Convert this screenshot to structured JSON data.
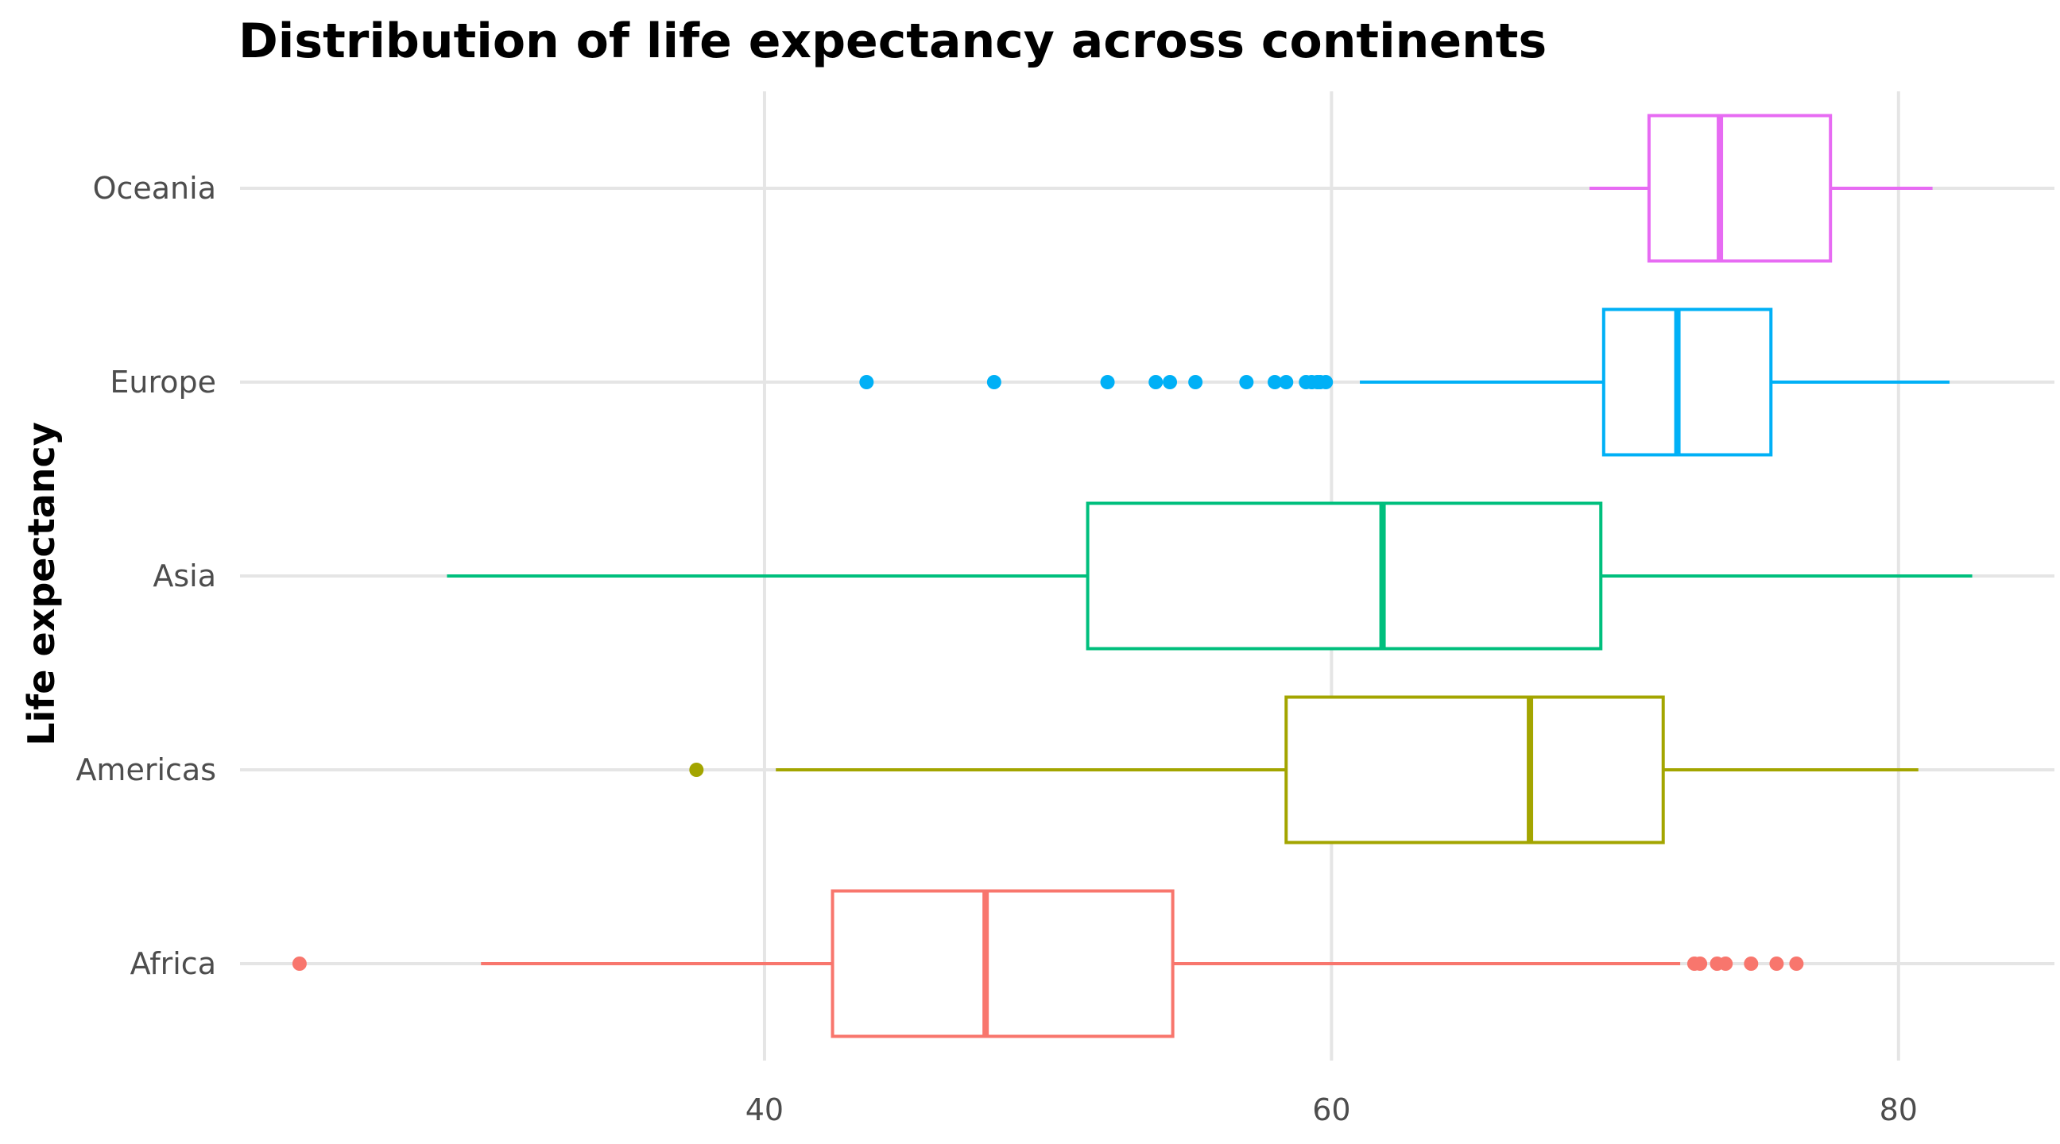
{
  "chart_data": {
    "type": "boxplot",
    "orientation": "horizontal",
    "title": "Distribution of life expectancy across continents",
    "xlabel": "",
    "ylabel": "Life expectancy",
    "xlim": [
      21.5,
      85.5
    ],
    "xticks": [
      40,
      60,
      80
    ],
    "grid": true,
    "legend": "none",
    "categories": [
      "Africa",
      "Americas",
      "Asia",
      "Europe",
      "Oceania"
    ],
    "series": [
      {
        "name": "Africa",
        "color": "#F8766D",
        "whisker_low": 30.0,
        "q1": 42.4,
        "median": 47.8,
        "q3": 54.4,
        "whisker_high": 72.3,
        "outliers": [
          23.6,
          72.8,
          73.0,
          73.6,
          73.9,
          74.8,
          75.7,
          76.4
        ]
      },
      {
        "name": "Americas",
        "color": "#A3A500",
        "whisker_low": 40.4,
        "q1": 58.4,
        "median": 67.0,
        "q3": 71.7,
        "whisker_high": 80.7,
        "outliers": [
          37.6
        ]
      },
      {
        "name": "Asia",
        "color": "#00BF7D",
        "whisker_low": 28.8,
        "q1": 51.4,
        "median": 61.8,
        "q3": 69.5,
        "whisker_high": 82.6,
        "outliers": []
      },
      {
        "name": "Europe",
        "color": "#00B0F6",
        "whisker_low": 61.0,
        "q1": 69.6,
        "median": 72.2,
        "q3": 75.5,
        "whisker_high": 81.8,
        "outliers": [
          43.6,
          48.1,
          52.1,
          53.8,
          54.3,
          55.2,
          57.0,
          58.0,
          58.4,
          59.1,
          59.3,
          59.5,
          59.6,
          59.8
        ]
      },
      {
        "name": "Oceania",
        "color": "#E76BF3",
        "whisker_low": 69.1,
        "q1": 71.2,
        "median": 73.7,
        "q3": 77.6,
        "whisker_high": 81.2,
        "outliers": []
      }
    ]
  }
}
